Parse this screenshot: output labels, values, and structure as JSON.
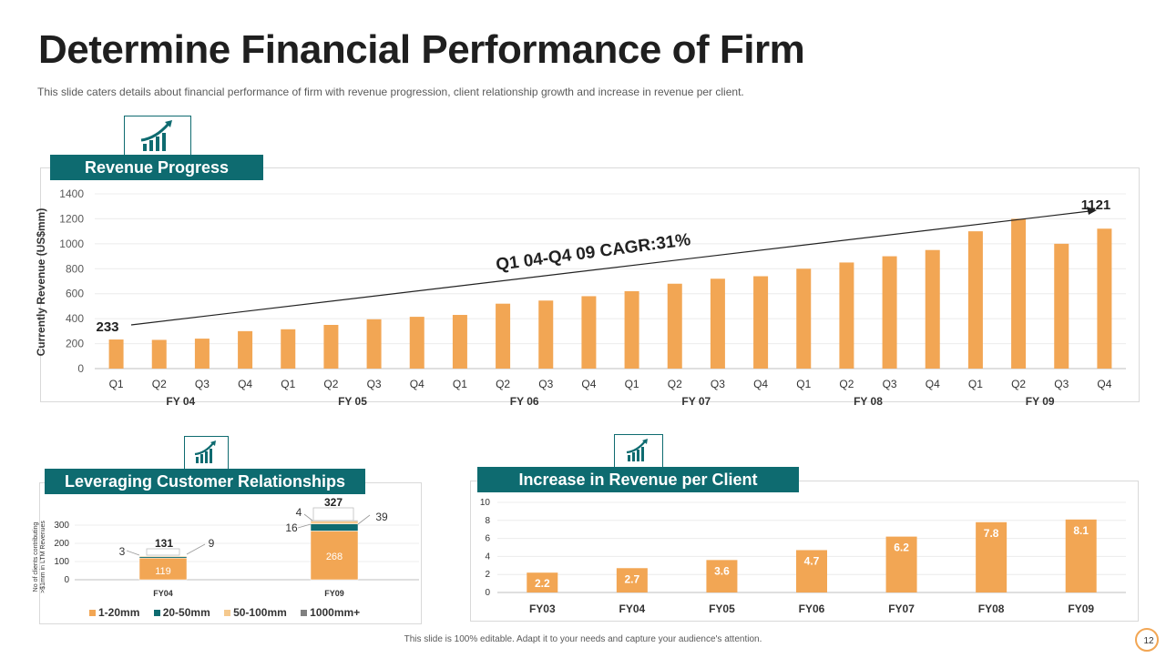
{
  "page": {
    "title": "Determine Financial Performance of Firm",
    "subtitle": "This slide caters details about financial performance  of firm with revenue  progression,  client relationship growth  and increase  in revenue  per client.",
    "footer": "This slide is 100% editable.  Adapt it to your needs and capture your audience's attention.",
    "page_number": "12"
  },
  "colors": {
    "accent": "#0e6b70",
    "bar": "#f2a654",
    "bar_light": "#f5c98e",
    "gray": "#808080"
  },
  "chart_data": [
    {
      "type": "bar",
      "header": "Revenue Progress",
      "ylabel": "Currently Revenue (US$mm)",
      "ylim": [
        0,
        1400
      ],
      "yticks": [
        "0",
        "200",
        "400",
        "600",
        "800",
        "1000",
        "1200",
        "1400"
      ],
      "quarters": [
        "Q1",
        "Q2",
        "Q3",
        "Q4",
        "Q1",
        "Q2",
        "Q3",
        "Q4",
        "Q1",
        "Q2",
        "Q3",
        "Q4",
        "Q1",
        "Q2",
        "Q3",
        "Q4",
        "Q1",
        "Q2",
        "Q3",
        "Q4",
        "Q1",
        "Q2",
        "Q3",
        "Q4"
      ],
      "years": [
        "FY 04",
        "FY 05",
        "FY 06",
        "FY 07",
        "FY 08",
        "FY 09"
      ],
      "values": [
        233,
        230,
        240,
        300,
        315,
        350,
        395,
        415,
        430,
        520,
        545,
        580,
        620,
        680,
        720,
        740,
        800,
        850,
        900,
        950,
        1100,
        1200,
        1000,
        1121
      ],
      "start_label": "233",
      "end_label": "1121",
      "trend_label": "Q1 04-Q4 09 CAGR:31%"
    },
    {
      "type": "stacked-bar",
      "header": "Leveraging Customer Relationships",
      "ylabel_line1": "No of clients contributing",
      "ylabel_line2": ">$1mm in LTM Revenues",
      "ylim": [
        0,
        300
      ],
      "yticks": [
        "0",
        "100",
        "200",
        "300"
      ],
      "categories": [
        "FY04",
        "FY09"
      ],
      "series": [
        {
          "name": "1-20mm",
          "values": [
            119,
            268
          ]
        },
        {
          "name": "20-50mm",
          "values": [
            9,
            39
          ]
        },
        {
          "name": "50-100mm",
          "values": [
            3,
            16
          ]
        },
        {
          "name": "1000mm+",
          "values": [
            0,
            4
          ]
        }
      ],
      "totals": [
        "131",
        "327"
      ],
      "labels": {
        "fy04_base": "119",
        "fy04_top": "9",
        "fy04_side": "3",
        "fy09_base": "268",
        "fy09_top": "39",
        "fy09_left": "16",
        "fy09_small": "4"
      }
    },
    {
      "type": "bar",
      "header": "Increase in Revenue per Client",
      "ylim": [
        0,
        10
      ],
      "yticks": [
        "0",
        "2",
        "4",
        "6",
        "8",
        "10"
      ],
      "categories": [
        "FY03",
        "FY04",
        "FY05",
        "FY06",
        "FY07",
        "FY08",
        "FY09"
      ],
      "values": [
        2.2,
        2.7,
        3.6,
        4.7,
        6.2,
        7.8,
        8.1
      ],
      "value_labels": [
        "2.2",
        "2.7",
        "3.6",
        "4.7",
        "6.2",
        "7.8",
        "8.1"
      ]
    }
  ]
}
